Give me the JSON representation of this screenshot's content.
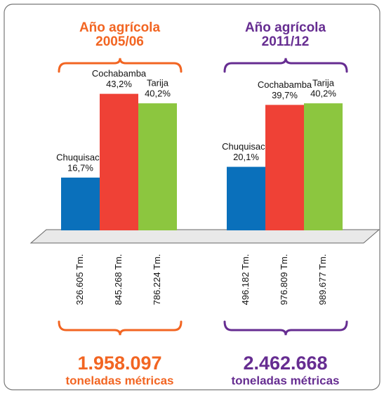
{
  "chart_data": [
    {
      "type": "bar",
      "title": "Año agrícola",
      "subtitle": "2005/06",
      "categories": [
        "Chuquisaca",
        "Cochabamba",
        "Tarija"
      ],
      "values": [
        16.7,
        43.2,
        40.2
      ],
      "value_labels": [
        "16,7%",
        "43,2%",
        "40,2%"
      ],
      "colors": [
        "#0a70bb",
        "#ef4136",
        "#8cc63f"
      ],
      "accent": "#f26522",
      "ylim": [
        0,
        50
      ],
      "tonnages": [
        "326.605 Tm.",
        "845.268 Tm.",
        "786.224 Tm."
      ],
      "total": "1.958.097",
      "total_label": "toneladas métricas"
    },
    {
      "type": "bar",
      "title": "Año agrícola",
      "subtitle": "2011/12",
      "categories": [
        "Chuquisaca",
        "Cochabamba",
        "Tarija"
      ],
      "values": [
        20.1,
        39.7,
        40.2
      ],
      "value_labels": [
        "20,1%",
        "39,7%",
        "40,2%"
      ],
      "colors": [
        "#0a70bb",
        "#ef4136",
        "#8cc63f"
      ],
      "accent": "#662d91",
      "ylim": [
        0,
        50
      ],
      "tonnages": [
        "496.182 Tm.",
        "976.809 Tm.",
        "989.677 Tm."
      ],
      "total": "2.462.668",
      "total_label": "toneladas métricas"
    }
  ]
}
